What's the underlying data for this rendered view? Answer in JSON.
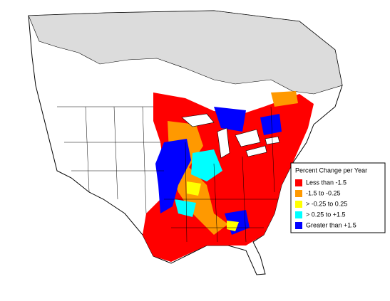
{
  "legend": {
    "title": "Percent Change per Year",
    "items": [
      {
        "label": "Less than -1.5",
        "color": "#ff0000"
      },
      {
        "label": "-1.5 to -0.25",
        "color": "#ff9900"
      },
      {
        "label": "> -0.25 to 0.25",
        "color": "#ffff00"
      },
      {
        "label": "> 0.25 to +1.5",
        "color": "#00ffff"
      },
      {
        "label": "Greater than +1.5",
        "color": "#0000ff"
      }
    ]
  }
}
